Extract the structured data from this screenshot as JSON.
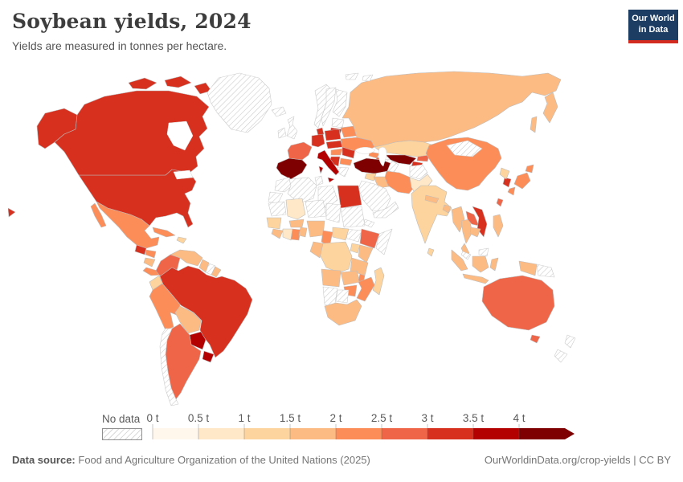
{
  "header": {
    "title": "Soybean yields, 2024",
    "subtitle": "Yields are measured in tonnes per hectare."
  },
  "logo": {
    "line1": "Our World",
    "line2": "in Data"
  },
  "colors": {
    "logo_bg": "#1d3d63",
    "logo_bar": "#d42b20",
    "border": "#c2c2c2",
    "hatch_line": "#c9c9c9",
    "label_text": "#5b5b5b"
  },
  "legend": {
    "no_data_label": "No data"
  },
  "footer": {
    "datasource_label": "Data source:",
    "datasource_text": "Food and Agriculture Organization of the United Nations (2025)",
    "note_right": "OurWorldinData.org/crop-yields | CC BY"
  },
  "chart_data": {
    "type": "choropleth",
    "title": "Soybean yields, 2024",
    "unit": "tonnes per hectare",
    "year": 2024,
    "no_data_style": "hatched",
    "legend_arrow_above_max": true,
    "bins": [
      {
        "label": "0 t",
        "min": 0,
        "max": 0.5,
        "color": "#fff7ec"
      },
      {
        "label": "0.5 t",
        "min": 0.5,
        "max": 1,
        "color": "#fee8c8"
      },
      {
        "label": "1 t",
        "min": 1,
        "max": 1.5,
        "color": "#fdd49e"
      },
      {
        "label": "1.5 t",
        "min": 1.5,
        "max": 2,
        "color": "#fdbb84"
      },
      {
        "label": "2 t",
        "min": 2,
        "max": 2.5,
        "color": "#fc8d59"
      },
      {
        "label": "2.5 t",
        "min": 2.5,
        "max": 3,
        "color": "#ef6548"
      },
      {
        "label": "3 t",
        "min": 3,
        "max": 3.5,
        "color": "#d7301f"
      },
      {
        "label": "3.5 t",
        "min": 3.5,
        "max": 4,
        "color": "#b30000"
      },
      {
        "label": "4 t",
        "min": 4,
        "max": null,
        "color": "#7f0000"
      }
    ],
    "countries": [
      {
        "id": "united-states",
        "name": "United States",
        "bin": 6
      },
      {
        "id": "canada",
        "name": "Canada",
        "bin": 6
      },
      {
        "id": "greenland",
        "name": "Greenland",
        "bin": "no-data"
      },
      {
        "id": "mexico",
        "name": "Mexico",
        "bin": 4
      },
      {
        "id": "guatemala",
        "name": "Guatemala",
        "bin": 6
      },
      {
        "id": "honduras",
        "name": "Honduras",
        "bin": 4
      },
      {
        "id": "nicaragua",
        "name": "Nicaragua",
        "bin": 3
      },
      {
        "id": "costa-rica-panama",
        "name": "Costa Rica and Panama",
        "bin": 4
      },
      {
        "id": "cuba",
        "name": "Cuba",
        "bin": 4
      },
      {
        "id": "hispaniola",
        "name": "Haiti and Dominican Republic",
        "bin": 2
      },
      {
        "id": "colombia",
        "name": "Colombia",
        "bin": 5
      },
      {
        "id": "venezuela",
        "name": "Venezuela",
        "bin": 3
      },
      {
        "id": "guyana",
        "name": "Guyana",
        "bin": 3
      },
      {
        "id": "suriname",
        "name": "Suriname",
        "bin": "no-data"
      },
      {
        "id": "french-guiana",
        "name": "French Guiana",
        "bin": 3
      },
      {
        "id": "ecuador",
        "name": "Ecuador",
        "bin": 2
      },
      {
        "id": "peru",
        "name": "Peru",
        "bin": 4
      },
      {
        "id": "brazil",
        "name": "Brazil",
        "bin": 6
      },
      {
        "id": "bolivia",
        "name": "Bolivia",
        "bin": 3
      },
      {
        "id": "paraguay",
        "name": "Paraguay",
        "bin": 7
      },
      {
        "id": "uruguay",
        "name": "Uruguay",
        "bin": 7
      },
      {
        "id": "argentina",
        "name": "Argentina",
        "bin": 5
      },
      {
        "id": "chile",
        "name": "Chile",
        "bin": "no-data"
      },
      {
        "id": "iceland",
        "name": "Iceland",
        "bin": "no-data"
      },
      {
        "id": "ireland",
        "name": "Ireland",
        "bin": "no-data"
      },
      {
        "id": "united-kingdom",
        "name": "United Kingdom",
        "bin": "no-data"
      },
      {
        "id": "norway",
        "name": "Norway",
        "bin": "no-data"
      },
      {
        "id": "sweden",
        "name": "Sweden",
        "bin": "no-data"
      },
      {
        "id": "finland",
        "name": "Finland",
        "bin": "no-data"
      },
      {
        "id": "estonia-latvia",
        "name": "Estonia and Latvia",
        "bin": "no-data"
      },
      {
        "id": "lithuania",
        "name": "Lithuania",
        "bin": 6
      },
      {
        "id": "denmark",
        "name": "Denmark",
        "bin": 6
      },
      {
        "id": "spain-portugal",
        "name": "Spain and Portugal",
        "bin": 8
      },
      {
        "id": "france",
        "name": "France",
        "bin": 5
      },
      {
        "id": "germany",
        "name": "Germany",
        "bin": 6
      },
      {
        "id": "austria-czechia",
        "name": "Czechia, Austria and Slovakia",
        "bin": 6
      },
      {
        "id": "poland",
        "name": "Poland",
        "bin": 6
      },
      {
        "id": "hungary",
        "name": "Hungary",
        "bin": 4
      },
      {
        "id": "romania",
        "name": "Romania",
        "bin": 6
      },
      {
        "id": "balkans",
        "name": "Western Balkans",
        "bin": 6
      },
      {
        "id": "bulgaria",
        "name": "Bulgaria",
        "bin": 4
      },
      {
        "id": "greece",
        "name": "Greece",
        "bin": "no-data"
      },
      {
        "id": "italy",
        "name": "Italy",
        "bin": 7
      },
      {
        "id": "belarus",
        "name": "Belarus",
        "bin": 4
      },
      {
        "id": "ukraine",
        "name": "Ukraine",
        "bin": 4
      },
      {
        "id": "russia",
        "name": "Russia",
        "bin": 3
      },
      {
        "id": "kazakhstan",
        "name": "Kazakhstan",
        "bin": 2
      },
      {
        "id": "uzbekistan",
        "name": "Uzbekistan",
        "bin": 8
      },
      {
        "id": "turkmenistan",
        "name": "Turkmenistan",
        "bin": "no-data"
      },
      {
        "id": "kyrgyzstan",
        "name": "Kyrgyzstan",
        "bin": 5
      },
      {
        "id": "tajikistan",
        "name": "Tajikistan",
        "bin": 6
      },
      {
        "id": "georgia",
        "name": "Georgia",
        "bin": 4
      },
      {
        "id": "azerbaijan",
        "name": "Azerbaijan",
        "bin": 5
      },
      {
        "id": "turkey",
        "name": "Turkey",
        "bin": 8
      },
      {
        "id": "syria",
        "name": "Syria",
        "bin": 2
      },
      {
        "id": "iraq",
        "name": "Iraq",
        "bin": 3
      },
      {
        "id": "iran",
        "name": "Iran",
        "bin": 4
      },
      {
        "id": "saudi-arabia",
        "name": "Saudi Arabia",
        "bin": "no-data"
      },
      {
        "id": "yemen-oman",
        "name": "Yemen and Oman",
        "bin": "no-data"
      },
      {
        "id": "afghanistan",
        "name": "Afghanistan",
        "bin": "no-data"
      },
      {
        "id": "pakistan",
        "name": "Pakistan",
        "bin": 1
      },
      {
        "id": "india",
        "name": "India",
        "bin": 2
      },
      {
        "id": "sri-lanka",
        "name": "Sri Lanka",
        "bin": 2
      },
      {
        "id": "nepal",
        "name": "Nepal",
        "bin": 3
      },
      {
        "id": "bangladesh",
        "name": "Bangladesh",
        "bin": 3
      },
      {
        "id": "china",
        "name": "China",
        "bin": 4
      },
      {
        "id": "mongolia",
        "name": "Mongolia",
        "bin": "no-data"
      },
      {
        "id": "myanmar",
        "name": "Myanmar",
        "bin": 3
      },
      {
        "id": "thailand",
        "name": "Thailand",
        "bin": 3
      },
      {
        "id": "laos",
        "name": "Laos",
        "bin": 5
      },
      {
        "id": "vietnam",
        "name": "Vietnam",
        "bin": 6
      },
      {
        "id": "cambodia",
        "name": "Cambodia",
        "bin": 3
      },
      {
        "id": "malaysia",
        "name": "Malaysia",
        "bin": "no-data"
      },
      {
        "id": "indonesia",
        "name": "Indonesia",
        "bin": 3
      },
      {
        "id": "papua-new-guinea",
        "name": "Papua New Guinea",
        "bin": "no-data"
      },
      {
        "id": "philippines",
        "name": "Philippines",
        "bin": 3
      },
      {
        "id": "taiwan",
        "name": "Taiwan",
        "bin": 5
      },
      {
        "id": "japan",
        "name": "Japan",
        "bin": 4
      },
      {
        "id": "south-korea",
        "name": "South Korea",
        "bin": 6
      },
      {
        "id": "north-korea",
        "name": "North Korea",
        "bin": 2
      },
      {
        "id": "australia",
        "name": "Australia",
        "bin": 5
      },
      {
        "id": "new-zealand",
        "name": "New Zealand",
        "bin": "no-data"
      },
      {
        "id": "morocco",
        "name": "Morocco",
        "bin": "no-data"
      },
      {
        "id": "western-sahara",
        "name": "Western Sahara",
        "bin": "no-data"
      },
      {
        "id": "algeria",
        "name": "Algeria",
        "bin": "no-data"
      },
      {
        "id": "tunisia",
        "name": "Tunisia",
        "bin": "no-data"
      },
      {
        "id": "libya",
        "name": "Libya",
        "bin": "no-data"
      },
      {
        "id": "egypt",
        "name": "Egypt",
        "bin": 6
      },
      {
        "id": "mauritania",
        "name": "Mauritania",
        "bin": "no-data"
      },
      {
        "id": "mali",
        "name": "Mali",
        "bin": 1
      },
      {
        "id": "niger",
        "name": "Niger",
        "bin": "no-data"
      },
      {
        "id": "chad",
        "name": "Chad",
        "bin": "no-data"
      },
      {
        "id": "sudan",
        "name": "Sudan",
        "bin": "no-data"
      },
      {
        "id": "eritrea",
        "name": "Eritrea",
        "bin": "no-data"
      },
      {
        "id": "south-sudan",
        "name": "South Sudan",
        "bin": "no-data"
      },
      {
        "id": "somalia",
        "name": "Somalia",
        "bin": "no-data"
      },
      {
        "id": "senegal-guinea",
        "name": "Senegal and Guinea",
        "bin": 2
      },
      {
        "id": "sierra-leone-liberia",
        "name": "Sierra Leone and Liberia",
        "bin": 3
      },
      {
        "id": "cote-divoire",
        "name": "Cote d'Ivoire",
        "bin": 1
      },
      {
        "id": "ghana",
        "name": "Ghana",
        "bin": 4
      },
      {
        "id": "togo-benin",
        "name": "Togo and Benin",
        "bin": 3
      },
      {
        "id": "burkina-faso",
        "name": "Burkina Faso",
        "bin": 3
      },
      {
        "id": "nigeria",
        "name": "Nigeria",
        "bin": 3
      },
      {
        "id": "cameroon",
        "name": "Cameroon",
        "bin": 4
      },
      {
        "id": "central-african-republic",
        "name": "Central African Republic",
        "bin": 2
      },
      {
        "id": "ethiopia",
        "name": "Ethiopia",
        "bin": 5
      },
      {
        "id": "uganda",
        "name": "Uganda",
        "bin": 2
      },
      {
        "id": "kenya",
        "name": "Kenya",
        "bin": 3
      },
      {
        "id": "dr-congo",
        "name": "Democratic Republic of Congo",
        "bin": 2
      },
      {
        "id": "gabon-congo",
        "name": "Gabon and Congo",
        "bin": 3
      },
      {
        "id": "tanzania",
        "name": "Tanzania",
        "bin": 3
      },
      {
        "id": "angola",
        "name": "Angola",
        "bin": 3
      },
      {
        "id": "zambia",
        "name": "Zambia",
        "bin": 3
      },
      {
        "id": "malawi",
        "name": "Malawi",
        "bin": 4
      },
      {
        "id": "mozambique",
        "name": "Mozambique",
        "bin": 4
      },
      {
        "id": "zimbabwe",
        "name": "Zimbabwe",
        "bin": 4
      },
      {
        "id": "namibia",
        "name": "Namibia",
        "bin": "no-data"
      },
      {
        "id": "botswana",
        "name": "Botswana",
        "bin": "no-data"
      },
      {
        "id": "south-africa",
        "name": "South Africa",
        "bin": 3
      },
      {
        "id": "madagascar",
        "name": "Madagascar",
        "bin": 2
      },
      {
        "id": "svalbard",
        "name": "Svalbard",
        "bin": "no-data"
      }
    ]
  }
}
